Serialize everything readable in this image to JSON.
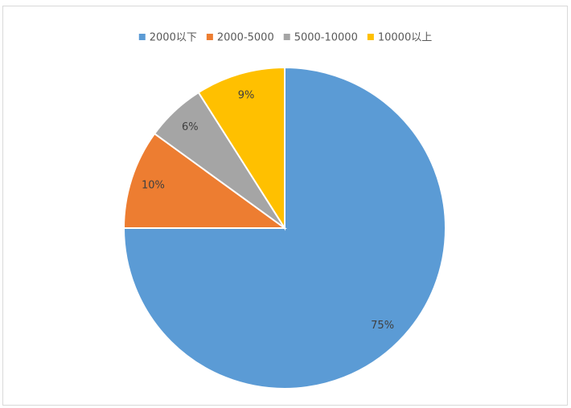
{
  "chart_data": {
    "type": "pie",
    "categories": [
      "2000以下",
      "2000-5000",
      "5000-10000",
      "10000以上"
    ],
    "values": [
      75,
      10,
      6,
      9
    ],
    "value_labels": [
      "75%",
      "10%",
      "6%",
      "9%"
    ],
    "colors": [
      "#5b9bd5",
      "#ed7d31",
      "#a5a5a5",
      "#ffc000"
    ],
    "legend": "top"
  }
}
